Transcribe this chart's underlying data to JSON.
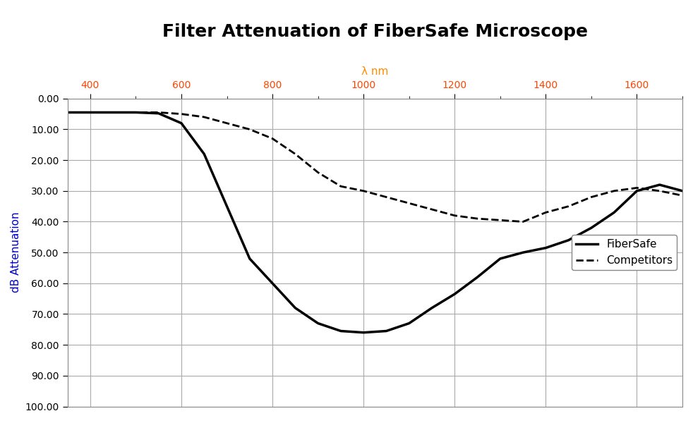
{
  "title": "Filter Attenuation of FiberSafe Microscope",
  "xlabel": "λ nm",
  "ylabel": "dB Attenuation",
  "xlabel_color": "#FF8C00",
  "ylabel_color": "#0000CD",
  "x_tick_color": "#FF4500",
  "xmin": 350,
  "xmax": 1700,
  "ymin": 0.0,
  "ymax": 100.0,
  "ytick_step": 10.0,
  "xtick_values": [
    400,
    600,
    800,
    1000,
    1200,
    1400,
    1600
  ],
  "fibersafe_x": [
    350,
    400,
    450,
    500,
    550,
    600,
    650,
    700,
    750,
    800,
    850,
    900,
    950,
    1000,
    1050,
    1100,
    1150,
    1200,
    1250,
    1300,
    1350,
    1400,
    1450,
    1500,
    1550,
    1600,
    1650,
    1700
  ],
  "fibersafe_y": [
    4.5,
    4.5,
    4.5,
    4.5,
    4.8,
    8.0,
    18.0,
    35.0,
    52.0,
    60.0,
    68.0,
    73.0,
    75.5,
    76.0,
    75.5,
    73.0,
    68.0,
    63.5,
    58.0,
    52.0,
    50.0,
    48.5,
    46.0,
    42.0,
    37.0,
    30.0,
    28.0,
    30.0
  ],
  "competitors_x": [
    350,
    400,
    450,
    500,
    550,
    600,
    650,
    700,
    750,
    800,
    850,
    900,
    950,
    1000,
    1050,
    1100,
    1150,
    1200,
    1250,
    1300,
    1350,
    1400,
    1450,
    1500,
    1550,
    1600,
    1650,
    1700
  ],
  "competitors_y": [
    4.5,
    4.5,
    4.5,
    4.5,
    4.5,
    5.0,
    6.0,
    8.0,
    10.0,
    13.0,
    18.0,
    24.0,
    28.5,
    30.0,
    32.0,
    34.0,
    36.0,
    38.0,
    39.0,
    39.5,
    40.0,
    37.0,
    35.0,
    32.0,
    30.0,
    29.0,
    30.0,
    31.5
  ],
  "fibersafe_color": "#000000",
  "competitors_color": "#000000",
  "fibersafe_linewidth": 2.5,
  "competitors_linewidth": 2.0,
  "fibersafe_label": "FiberSafe",
  "competitors_label": "Competitors",
  "grid_color": "#AAAAAA",
  "background_color": "#FFFFFF",
  "title_fontsize": 18,
  "axis_label_fontsize": 11,
  "tick_fontsize": 10,
  "legend_fontsize": 11
}
